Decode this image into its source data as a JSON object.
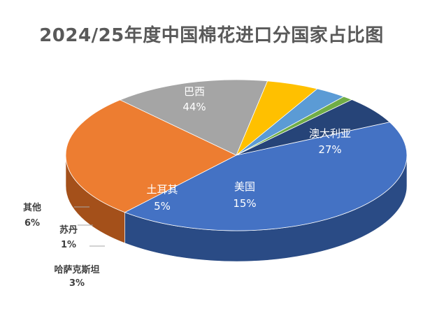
{
  "chart_data": {
    "type": "pie",
    "title": "2024/25年度中国棉花进口分国家占比图",
    "slices": [
      {
        "name": "巴西",
        "value": 44,
        "label": "44%",
        "color": "#4472c4",
        "side": "#2a4b85"
      },
      {
        "name": "澳大利亚",
        "value": 27,
        "label": "27%",
        "color": "#ed7d31",
        "side": "#a4501a"
      },
      {
        "name": "美国",
        "value": 15,
        "label": "15%",
        "color": "#a5a5a5",
        "side": "#5e5e5e"
      },
      {
        "name": "土耳其",
        "value": 5,
        "label": "5%",
        "color": "#ffc000",
        "side": "#b98a00"
      },
      {
        "name": "哈萨克斯坦",
        "value": 3,
        "label": "3%",
        "color": "#5b9bd5",
        "side": "#3a6f9f"
      },
      {
        "name": "苏丹",
        "value": 1,
        "label": "1%",
        "color": "#70ad47",
        "side": "#4a7a2c"
      },
      {
        "name": "其他",
        "value": 6,
        "label": "6%",
        "color": "#264478",
        "side": "#1a2f54"
      }
    ]
  }
}
